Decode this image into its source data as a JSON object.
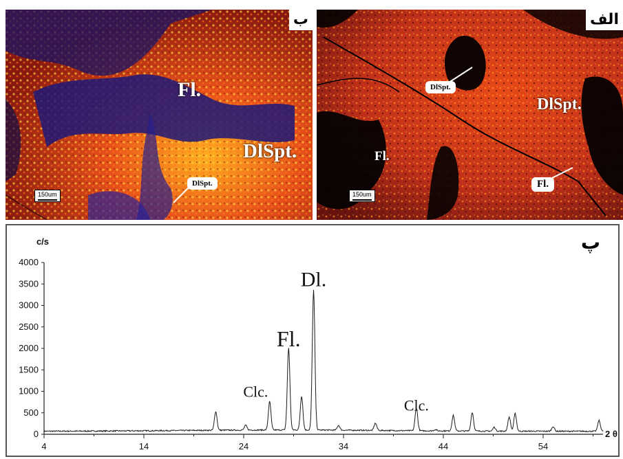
{
  "photos": {
    "panel_b": {
      "tag": "ب",
      "label_fl": "Fl.",
      "label_dlspt": "DlSpt.",
      "callout": "DlSpt.",
      "scale": "150um"
    },
    "panel_a": {
      "tag": "الف",
      "callout_dlspt": "DlSpt.",
      "label_dlspt": "DlSpt.",
      "label_fl": "Fl.",
      "callout_fl": "Fl.",
      "scale": "150um"
    }
  },
  "chart_data": {
    "type": "line",
    "tag": "پ",
    "ylabel": "c/s",
    "xlabel": "2 θ",
    "xlim": [
      4,
      60
    ],
    "ylim": [
      0,
      4000
    ],
    "xticks": [
      "4",
      "14",
      "24",
      "34",
      "44",
      "54"
    ],
    "yticks": [
      "0",
      "500",
      "1000",
      "1500",
      "2000",
      "2500",
      "3000",
      "3500",
      "4000"
    ],
    "annotations": [
      {
        "text": "Dl.",
        "x": 31,
        "y": 3450
      },
      {
        "text": "Fl.",
        "x": 28.5,
        "y": 2050
      },
      {
        "text": "Clc.",
        "x": 25.2,
        "y": 870
      },
      {
        "text": "Clc.",
        "x": 41.3,
        "y": 550
      }
    ],
    "peaks": [
      {
        "x": 21.2,
        "y": 530
      },
      {
        "x": 24.2,
        "y": 200
      },
      {
        "x": 26.6,
        "y": 750
      },
      {
        "x": 28.5,
        "y": 2000
      },
      {
        "x": 29.8,
        "y": 880
      },
      {
        "x": 31.0,
        "y": 3350
      },
      {
        "x": 33.5,
        "y": 200
      },
      {
        "x": 37.2,
        "y": 260
      },
      {
        "x": 41.3,
        "y": 620
      },
      {
        "x": 43.2,
        "y": 120
      },
      {
        "x": 45.0,
        "y": 450
      },
      {
        "x": 46.9,
        "y": 520
      },
      {
        "x": 49.1,
        "y": 180
      },
      {
        "x": 50.6,
        "y": 420
      },
      {
        "x": 51.2,
        "y": 500
      },
      {
        "x": 55.0,
        "y": 200
      },
      {
        "x": 59.6,
        "y": 340
      }
    ]
  }
}
